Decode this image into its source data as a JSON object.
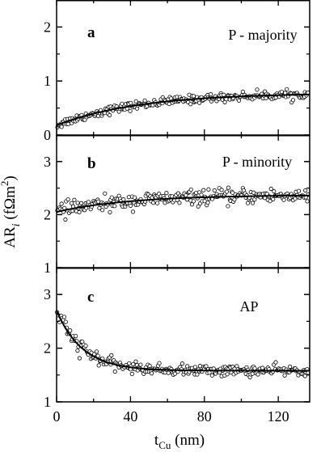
{
  "chart_data": [
    {
      "type": "scatter",
      "panel": "a",
      "label": "P - majority",
      "xlim": [
        0,
        137
      ],
      "ylim": [
        0,
        2.5
      ],
      "yticks": [
        "0",
        "1",
        "2"
      ],
      "fit": {
        "form": "saturating",
        "y0": 0.18,
        "yinf": 0.78,
        "tau": 45
      },
      "scatter": {
        "n": 250,
        "noise": 0.04
      }
    },
    {
      "type": "scatter",
      "panel": "b",
      "label": "P - minority",
      "xlim": [
        0,
        137
      ],
      "ylim": [
        1,
        3.5
      ],
      "yticks": [
        "1",
        "2",
        "3"
      ],
      "fit": {
        "form": "saturating",
        "y0": 2.05,
        "yinf": 2.37,
        "tau": 40
      },
      "scatter": {
        "n": 250,
        "noise": 0.07
      }
    },
    {
      "type": "scatter",
      "panel": "c",
      "label": "AP",
      "xlim": [
        0,
        137
      ],
      "ylim": [
        1,
        3.5
      ],
      "yticks": [
        "1",
        "2",
        "3"
      ],
      "fit": {
        "form": "decay",
        "y0": 2.7,
        "yinf": 1.58,
        "tau": 14
      },
      "scatter": {
        "n": 250,
        "noise": 0.05
      }
    }
  ],
  "x_axis": {
    "ticks": [
      "0",
      "40",
      "80",
      "120"
    ],
    "label_main": "t",
    "label_sub": "Cu",
    "label_unit": " (nm)"
  },
  "y_axis": {
    "label_main": "AR",
    "label_sub": "i",
    "label_unit": " (fΩm",
    "label_sup": "2",
    "label_close": ")"
  },
  "colors": {
    "axes": "#000000",
    "markers": "#000000",
    "fit_line": "#000000",
    "background": "#ffffff"
  }
}
